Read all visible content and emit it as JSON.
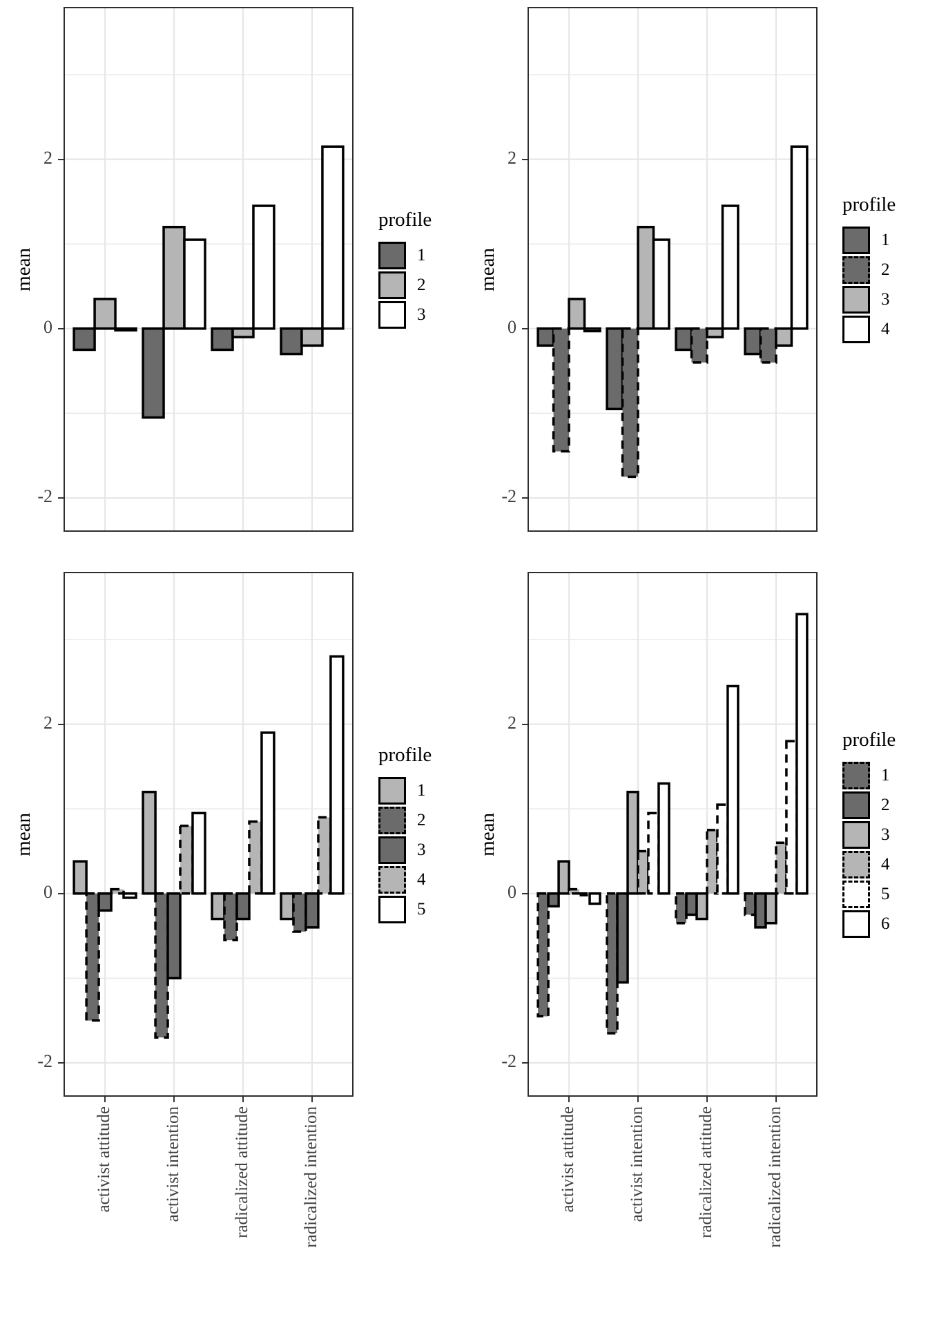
{
  "palette": {
    "dark_gray": "#6b6b6b",
    "light_gray": "#b5b5b5",
    "white": "#ffffff",
    "bar_stroke": "#000000",
    "grid_color": "#e7e7e7",
    "panel_border": "#2e2e2e",
    "tick_text": "#404040"
  },
  "chart_data": [
    {
      "type": "bar",
      "position": "top-left",
      "ylabel": "mean",
      "legend_title": "profile",
      "categories": [
        "activist attitude",
        "activist intention",
        "radicalized attitude",
        "radicalized intention"
      ],
      "y_ticks": [
        2,
        0,
        -2
      ],
      "ylim": [
        -2.4,
        3.8
      ],
      "grid": true,
      "legend_position": "right",
      "show_x_labels": false,
      "series": [
        {
          "name": "1",
          "fill": "#6b6b6b",
          "linetype": "solid",
          "values": [
            -0.25,
            -1.05,
            -0.25,
            -0.3
          ]
        },
        {
          "name": "2",
          "fill": "#b5b5b5",
          "linetype": "solid",
          "values": [
            0.35,
            1.2,
            -0.1,
            -0.2
          ]
        },
        {
          "name": "3",
          "fill": "#ffffff",
          "linetype": "solid",
          "values": [
            -0.02,
            1.05,
            1.45,
            2.15
          ]
        }
      ]
    },
    {
      "type": "bar",
      "position": "top-right",
      "ylabel": "mean",
      "legend_title": "profile",
      "categories": [
        "activist attitude",
        "activist intention",
        "radicalized attitude",
        "radicalized intention"
      ],
      "y_ticks": [
        2,
        0,
        -2
      ],
      "ylim": [
        -2.4,
        3.8
      ],
      "grid": true,
      "legend_position": "right",
      "show_x_labels": false,
      "series": [
        {
          "name": "1",
          "fill": "#6b6b6b",
          "linetype": "solid",
          "values": [
            -0.2,
            -0.95,
            -0.25,
            -0.3
          ]
        },
        {
          "name": "2",
          "fill": "#6b6b6b",
          "linetype": "dashed",
          "values": [
            -1.45,
            -1.75,
            -0.4,
            -0.4
          ]
        },
        {
          "name": "3",
          "fill": "#b5b5b5",
          "linetype": "solid",
          "values": [
            0.35,
            1.2,
            -0.1,
            -0.2
          ]
        },
        {
          "name": "4",
          "fill": "#ffffff",
          "linetype": "solid",
          "values": [
            -0.03,
            1.05,
            1.45,
            2.15
          ]
        }
      ]
    },
    {
      "type": "bar",
      "position": "bottom-left",
      "ylabel": "mean",
      "legend_title": "profile",
      "categories": [
        "activist attitude",
        "activist intention",
        "radicalized attitude",
        "radicalized intention"
      ],
      "y_ticks": [
        2,
        0,
        -2
      ],
      "ylim": [
        -2.4,
        3.8
      ],
      "grid": true,
      "legend_position": "right",
      "show_x_labels": true,
      "series": [
        {
          "name": "1",
          "fill": "#b5b5b5",
          "linetype": "solid",
          "values": [
            0.38,
            1.2,
            -0.3,
            -0.3
          ]
        },
        {
          "name": "2",
          "fill": "#6b6b6b",
          "linetype": "dashed",
          "values": [
            -1.5,
            -1.7,
            -0.55,
            -0.45
          ]
        },
        {
          "name": "3",
          "fill": "#6b6b6b",
          "linetype": "solid",
          "values": [
            -0.2,
            -1.0,
            -0.3,
            -0.4
          ]
        },
        {
          "name": "4",
          "fill": "#b5b5b5",
          "linetype": "dashed",
          "values": [
            0.05,
            0.8,
            0.85,
            0.9
          ]
        },
        {
          "name": "5",
          "fill": "#ffffff",
          "linetype": "solid",
          "values": [
            -0.05,
            0.95,
            1.9,
            2.8
          ]
        }
      ]
    },
    {
      "type": "bar",
      "position": "bottom-right",
      "ylabel": "mean",
      "legend_title": "profile",
      "categories": [
        "activist attitude",
        "activist intention",
        "radicalized attitude",
        "radicalized intention"
      ],
      "y_ticks": [
        2,
        0,
        -2
      ],
      "ylim": [
        -2.4,
        3.8
      ],
      "grid": true,
      "legend_position": "right",
      "show_x_labels": true,
      "series": [
        {
          "name": "1",
          "fill": "#6b6b6b",
          "linetype": "dashed",
          "values": [
            -1.45,
            -1.65,
            -0.35,
            -0.25
          ]
        },
        {
          "name": "2",
          "fill": "#6b6b6b",
          "linetype": "solid",
          "values": [
            -0.15,
            -1.05,
            -0.25,
            -0.4
          ]
        },
        {
          "name": "3",
          "fill": "#b5b5b5",
          "linetype": "solid",
          "values": [
            0.38,
            1.2,
            -0.3,
            -0.35
          ]
        },
        {
          "name": "4",
          "fill": "#b5b5b5",
          "linetype": "dashed",
          "values": [
            0.05,
            0.5,
            0.75,
            0.6
          ]
        },
        {
          "name": "5",
          "fill": "#ffffff",
          "linetype": "dashed",
          "values": [
            -0.02,
            0.95,
            1.05,
            1.8
          ]
        },
        {
          "name": "6",
          "fill": "#ffffff",
          "linetype": "solid",
          "values": [
            -0.12,
            1.3,
            2.45,
            3.3
          ]
        }
      ]
    }
  ]
}
